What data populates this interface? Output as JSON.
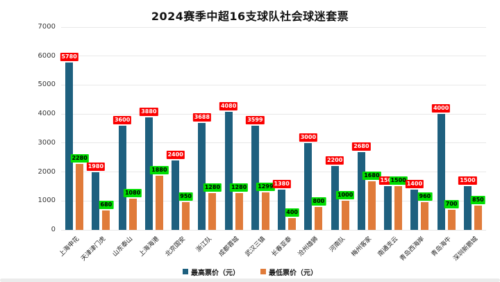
{
  "page": {
    "title": "2024赛季中超16支球队社会球迷套票"
  },
  "chart_data": {
    "type": "bar",
    "title": "2024赛季中超16支球队社会球迷套票",
    "categories": [
      "上海申花",
      "天津津门虎",
      "山东泰山",
      "上海海港",
      "北京国安",
      "浙江队",
      "成都蓉城",
      "武汉三镇",
      "长春亚泰",
      "沧州雄狮",
      "河南队",
      "梅州客家",
      "南通支云",
      "青岛西海岸",
      "青岛海牛",
      "深圳新鹏城"
    ],
    "series": [
      {
        "name": "最高票价（元）",
        "color": "#1e607f",
        "label_bg": "#fb0000",
        "label_color": "#ffffff",
        "values": [
          5780,
          1980,
          3600,
          3880,
          2400,
          3688,
          4080,
          3599,
          1380,
          3000,
          2200,
          2680,
          1500,
          1400,
          4000,
          1500
        ]
      },
      {
        "name": "最低票价（元）",
        "color": "#e07b3a",
        "label_bg": "#00dd00",
        "label_color": "#000000",
        "values": [
          2280,
          680,
          1080,
          1880,
          950,
          1280,
          1280,
          1299,
          400,
          800,
          1000,
          1680,
          1500,
          960,
          700,
          850
        ]
      }
    ],
    "ylabel": "",
    "xlabel": "",
    "ylim": [
      0,
      7000
    ],
    "ytick_step": 1000,
    "grid": true,
    "legend_position": "bottom"
  }
}
